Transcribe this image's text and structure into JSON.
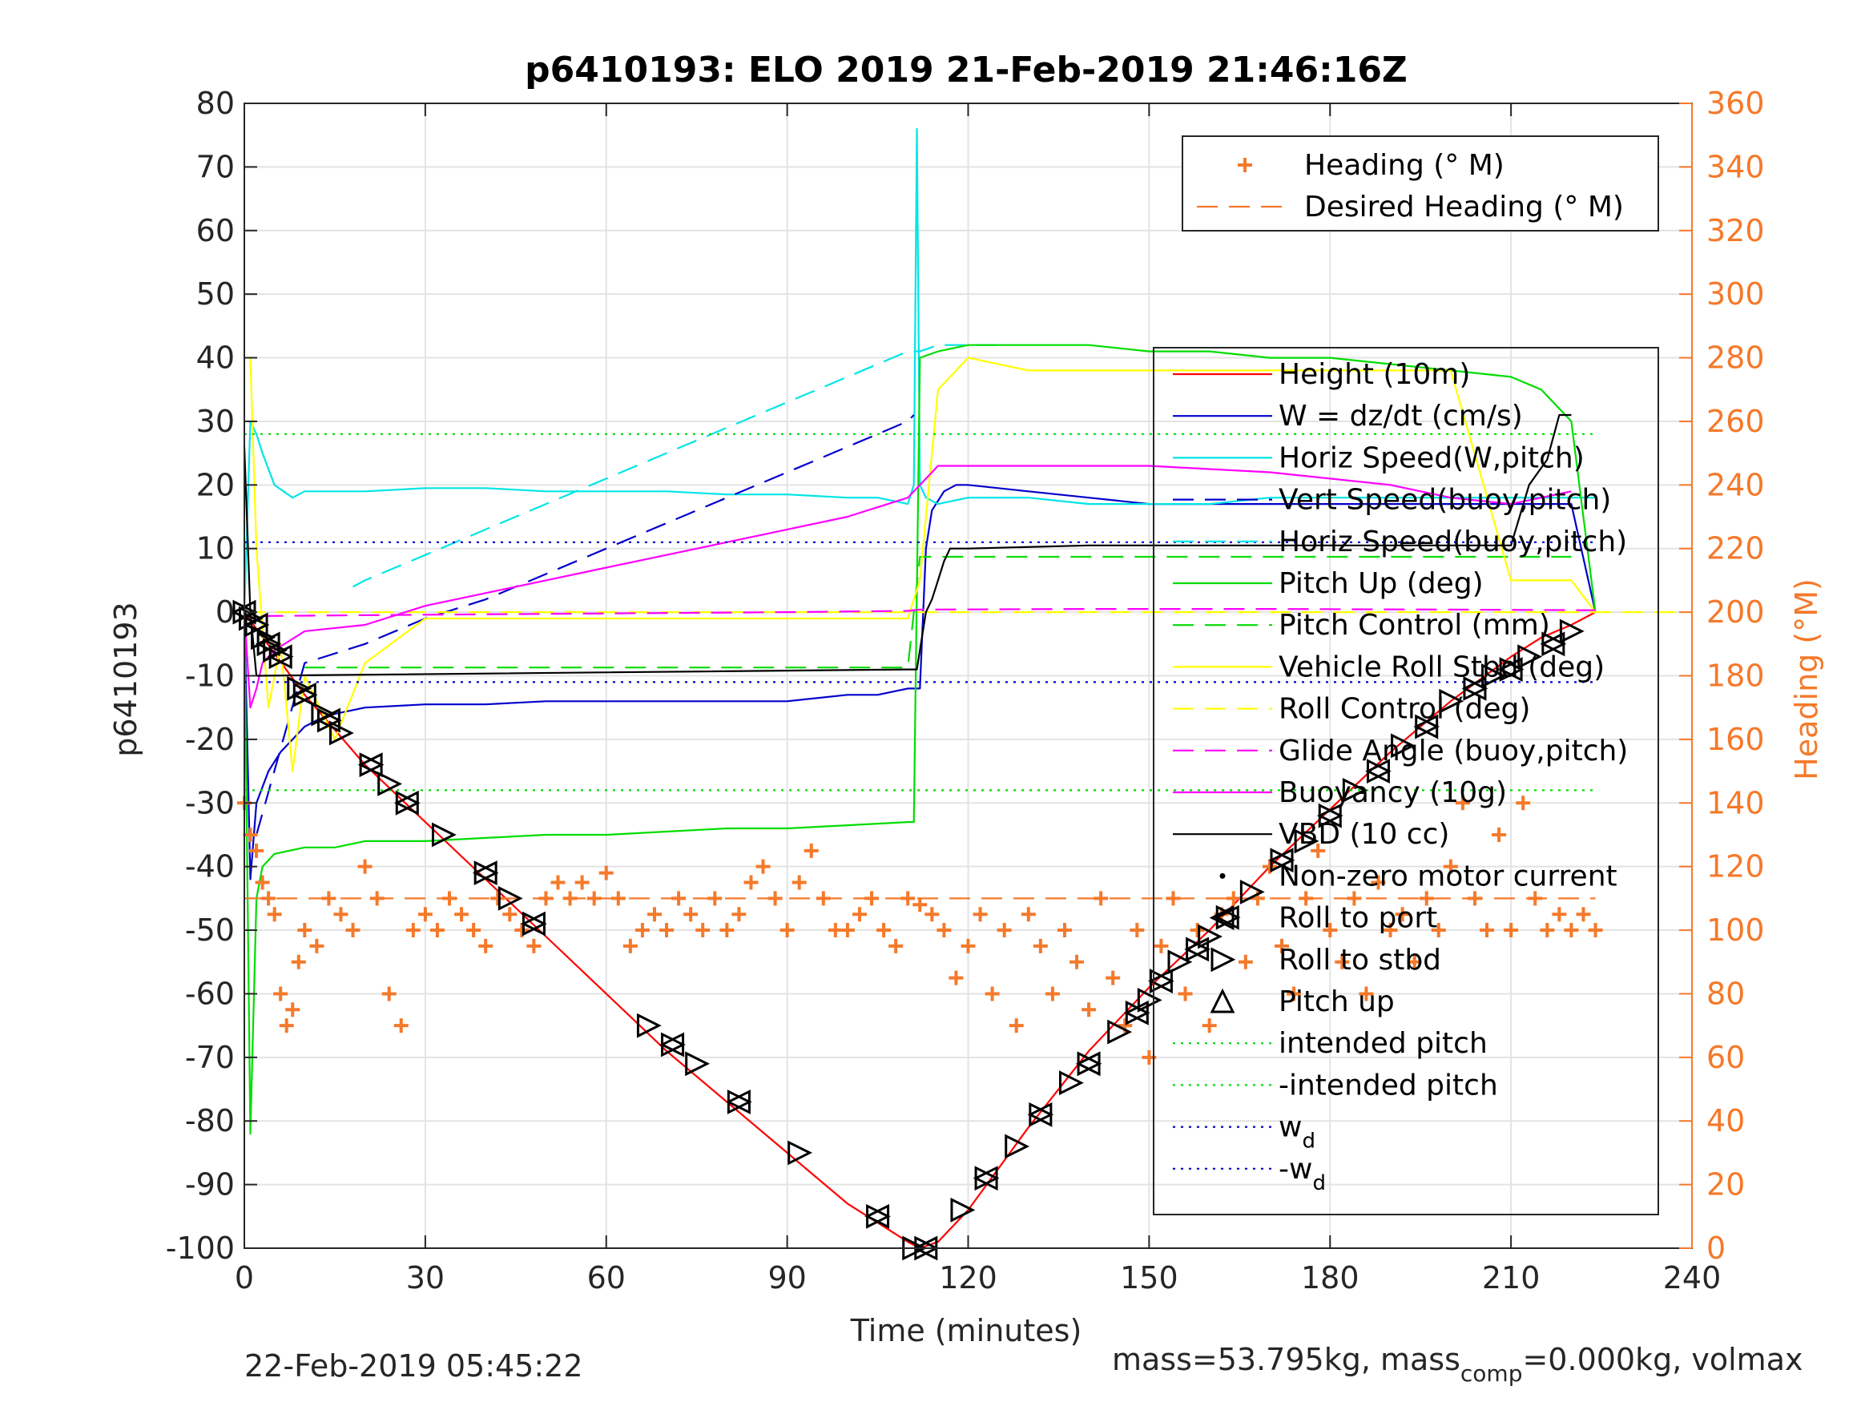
{
  "chart_data": {
    "type": "line",
    "title": "p6410193: ELO 2019 21-Feb-2019 21:46:16Z",
    "xlabel": "Time (minutes)",
    "ylabel": "p6410193",
    "ylabel_right": "Heading (°M)",
    "xlim": [
      0,
      240
    ],
    "ylim": [
      -100,
      80
    ],
    "ylim_right": [
      0,
      360
    ],
    "grid": true,
    "xticks": [
      0,
      30,
      60,
      90,
      120,
      150,
      180,
      210,
      240
    ],
    "yticks": [
      -100,
      -90,
      -80,
      -70,
      -60,
      -50,
      -40,
      -30,
      -20,
      -10,
      0,
      10,
      20,
      30,
      40,
      50,
      60,
      70,
      80
    ],
    "yticks_right": [
      0,
      20,
      40,
      60,
      80,
      100,
      120,
      140,
      160,
      180,
      200,
      220,
      240,
      260,
      280,
      300,
      320,
      340,
      360
    ],
    "footer_left": "22-Feb-2019 05:45:22",
    "footer_right_main": "mass=53.795kg, mass",
    "footer_right_sub": "comp",
    "footer_right_tail": "=0.000kg, volmax",
    "legend_heading": [
      {
        "name": "Heading (° M)",
        "color": "#f5792a",
        "style": "plus"
      },
      {
        "name": "Desired Heading (° M)",
        "color": "#f5792a",
        "style": "dash"
      }
    ],
    "legend_heading_placement": "top-right",
    "legend_main": [
      {
        "name": "Height (10m)",
        "color": "#ff0000",
        "style": "solid"
      },
      {
        "name": "W = dz/dt (cm/s)",
        "color": "#0000cc",
        "style": "solid"
      },
      {
        "name": "Horiz Speed(W,pitch)",
        "color": "#00e5e5",
        "style": "solid"
      },
      {
        "name": "Vert Speed(buoy,pitch)",
        "color": "#0000cc",
        "style": "dash"
      },
      {
        "name": "Horiz Speed(buoy,pitch)",
        "color": "#00e5e5",
        "style": "dash"
      },
      {
        "name": "Pitch Up (deg)",
        "color": "#00dd00",
        "style": "solid"
      },
      {
        "name": "Pitch Control (mm)",
        "color": "#00dd00",
        "style": "dash"
      },
      {
        "name": "Vehicle Roll Stbd (deg)",
        "color": "#ffff00",
        "style": "solid"
      },
      {
        "name": "Roll Control (deg)",
        "color": "#ffff00",
        "style": "dash"
      },
      {
        "name": "Glide Angle (buoy,pitch)",
        "color": "#ff00ff",
        "style": "dash"
      },
      {
        "name": "Buoyancy (10g)",
        "color": "#ff00ff",
        "style": "solid"
      },
      {
        "name": "VBD (10 cc)",
        "color": "#000000",
        "style": "solid"
      },
      {
        "name": "Non-zero motor current",
        "color": "#000000",
        "style": "dot"
      },
      {
        "name": "Roll to port",
        "color": "#000000",
        "style": "tri-left"
      },
      {
        "name": "Roll to stbd",
        "color": "#000000",
        "style": "tri-right"
      },
      {
        "name": "Pitch up",
        "color": "#000000",
        "style": "tri-up"
      },
      {
        "name": "intended pitch",
        "color": "#00dd00",
        "style": "dotted"
      },
      {
        "name": "-intended pitch",
        "color": "#00dd00",
        "style": "dotted"
      },
      {
        "name": "w",
        "sub": "d",
        "color": "#0000cc",
        "style": "dotted"
      },
      {
        "name": "-w",
        "sub": "d",
        "color": "#0000cc",
        "style": "dotted"
      }
    ],
    "legend_main_placement": "right",
    "series": [
      {
        "name": "Height (10m)",
        "color": "#ff0000",
        "style": "solid",
        "x": [
          0,
          10,
          20,
          30,
          40,
          50,
          60,
          70,
          80,
          90,
          100,
          105,
          110,
          112,
          115,
          120,
          130,
          140,
          150,
          160,
          170,
          180,
          190,
          200,
          210,
          215,
          220,
          224
        ],
        "y": [
          0,
          -13,
          -24,
          -33,
          -42,
          -51,
          -60,
          -69,
          -77,
          -85,
          -93,
          -96,
          -99,
          -100,
          -99,
          -94,
          -81,
          -69,
          -59,
          -50,
          -40,
          -31,
          -22,
          -14,
          -7,
          -4,
          -2,
          0
        ]
      },
      {
        "name": "W = dz/dt (cm/s)",
        "color": "#0000cc",
        "style": "solid",
        "x": [
          0,
          1,
          2,
          4,
          6,
          8,
          10,
          12,
          15,
          20,
          30,
          40,
          50,
          60,
          70,
          80,
          90,
          100,
          105,
          110,
          112,
          113,
          114,
          116,
          118,
          120,
          130,
          140,
          150,
          160,
          170,
          180,
          190,
          200,
          210,
          215,
          220,
          224
        ],
        "y": [
          0,
          -42,
          -30,
          -25,
          -22,
          -20,
          -18,
          -17,
          -16,
          -15,
          -14.5,
          -14.5,
          -14,
          -14,
          -14,
          -14,
          -14,
          -13,
          -13,
          -12,
          -12,
          10,
          16,
          19,
          20,
          20,
          19,
          18,
          17,
          17,
          17,
          17,
          17,
          17,
          17,
          17,
          17,
          0
        ]
      },
      {
        "name": "Horiz Speed(W,pitch)",
        "color": "#00e5e5",
        "style": "solid",
        "x": [
          0,
          1,
          2,
          3,
          5,
          8,
          10,
          15,
          20,
          30,
          40,
          50,
          60,
          70,
          80,
          90,
          100,
          105,
          110,
          111,
          111.5,
          112,
          113,
          115,
          120,
          130,
          140,
          150,
          160,
          170,
          180,
          190,
          200,
          210,
          215,
          220,
          224
        ],
        "y": [
          0,
          30,
          28,
          25,
          20,
          18,
          19,
          19,
          19,
          19.5,
          19.5,
          19,
          19,
          19,
          18.5,
          18.5,
          18,
          18,
          17,
          20,
          76,
          20,
          18,
          17,
          18,
          18,
          17,
          17,
          17,
          18,
          18,
          18,
          18,
          18,
          18,
          18,
          18
        ]
      },
      {
        "name": "Vert Speed(buoy,pitch)",
        "color": "#0000cc",
        "style": "dash",
        "x": [
          2,
          10,
          20,
          30,
          40,
          50,
          60,
          70,
          80,
          90,
          100,
          110,
          111
        ],
        "y": [
          -35,
          -8,
          -5,
          -1,
          2,
          6,
          10,
          14,
          18,
          22,
          26,
          30,
          31
        ]
      },
      {
        "name": "Horiz Speed(buoy,pitch)",
        "color": "#00e5e5",
        "style": "dash",
        "x": [
          18,
          20,
          30,
          40,
          50,
          60,
          70,
          80,
          90,
          100,
          110,
          112,
          115,
          120,
          125
        ],
        "y": [
          4,
          5,
          9,
          13,
          17,
          21,
          25,
          29,
          33,
          37,
          41,
          41,
          42,
          42,
          42
        ]
      },
      {
        "name": "Pitch Up (deg)",
        "color": "#00dd00",
        "style": "solid",
        "x": [
          0,
          1,
          2,
          3,
          5,
          10,
          15,
          20,
          30,
          40,
          50,
          60,
          70,
          80,
          90,
          100,
          110,
          111,
          112,
          115,
          120,
          130,
          140,
          150,
          160,
          170,
          180,
          190,
          200,
          210,
          215,
          220,
          224
        ],
        "y": [
          0,
          -82,
          -45,
          -40,
          -38,
          -37,
          -37,
          -36,
          -36,
          -35.5,
          -35,
          -35,
          -34.5,
          -34,
          -34,
          -33.5,
          -33,
          -33,
          40,
          41,
          42,
          42,
          42,
          41,
          41,
          40,
          40,
          39,
          38,
          37,
          35,
          30,
          0
        ]
      },
      {
        "name": "Pitch Control (mm)",
        "color": "#00dd00",
        "style": "dash",
        "x": [
          10,
          30,
          50,
          70,
          90,
          110,
          112,
          130,
          150,
          170,
          190,
          210,
          220
        ],
        "y": [
          -8.7,
          -8.7,
          -8.7,
          -8.7,
          -8.7,
          -8.7,
          8.7,
          8.7,
          8.7,
          8.7,
          8.7,
          8.7,
          8.7
        ]
      },
      {
        "name": "Vehicle Roll Stbd (deg)",
        "color": "#ffff00",
        "style": "solid",
        "x": [
          1,
          2,
          4,
          6,
          8,
          10,
          15,
          20,
          30,
          40,
          50,
          60,
          70,
          80,
          90,
          100,
          110,
          112,
          115,
          120,
          130,
          140,
          150,
          160,
          170,
          180,
          190,
          200,
          210,
          220,
          224
        ],
        "y": [
          40,
          10,
          -15,
          -5,
          -25,
          -10,
          -20,
          -8,
          -1,
          -1,
          -1,
          -1,
          -1,
          -1,
          -1,
          -1,
          -1,
          5,
          35,
          40,
          38,
          38,
          38,
          38,
          38,
          38,
          38,
          38,
          5,
          5,
          0
        ]
      },
      {
        "name": "Roll Control (deg)",
        "color": "#ffff00",
        "style": "dash",
        "x": [
          0,
          240
        ],
        "y": [
          0,
          0
        ]
      },
      {
        "name": "Glide Angle (buoy,pitch)",
        "color": "#ff00ff",
        "style": "dash",
        "x": [
          3,
          30,
          60,
          90,
          110,
          112,
          140,
          170,
          200,
          224
        ],
        "y": [
          -0.6,
          -0.4,
          -0.2,
          0,
          0.2,
          0.4,
          0.5,
          0.5,
          0.4,
          0.3
        ]
      },
      {
        "name": "Buoyancy (10g)",
        "color": "#ff00ff",
        "style": "solid",
        "x": [
          0,
          1,
          2,
          3,
          5,
          10,
          20,
          30,
          40,
          50,
          60,
          70,
          80,
          90,
          100,
          110,
          115,
          120,
          130,
          140,
          150,
          160,
          170,
          180,
          190,
          200,
          210,
          215,
          220
        ],
        "y": [
          0,
          -15,
          -12,
          -8,
          -6,
          -3,
          -2,
          1,
          3,
          5,
          7,
          9,
          11,
          13,
          15,
          18,
          23,
          23,
          23,
          23,
          23,
          22.5,
          22,
          21,
          20,
          18,
          17,
          18,
          19
        ]
      },
      {
        "name": "VBD (10 cc)",
        "color": "#000000",
        "style": "solid",
        "x": [
          0,
          1,
          2,
          110,
          111.5,
          113,
          114,
          115,
          116,
          117,
          120,
          140,
          160,
          180,
          200,
          210,
          213,
          216,
          218,
          220
        ],
        "y": [
          26,
          0,
          -10,
          -9,
          -9,
          0,
          2,
          5,
          8,
          10,
          10,
          10.5,
          10.5,
          10.5,
          10.5,
          10.5,
          20,
          24,
          31,
          31
        ]
      },
      {
        "name": "intended pitch",
        "color": "#00dd00",
        "style": "dotted",
        "x": [
          0,
          224
        ],
        "y": [
          28,
          28
        ]
      },
      {
        "name": "-intended pitch",
        "color": "#00dd00",
        "style": "dotted",
        "x": [
          0,
          224
        ],
        "y": [
          -28,
          -28
        ]
      },
      {
        "name": "w_d",
        "color": "#0000cc",
        "style": "dotted",
        "x": [
          0,
          224
        ],
        "y": [
          11,
          11
        ]
      },
      {
        "name": "-w_d",
        "color": "#0000cc",
        "style": "dotted",
        "x": [
          0,
          224
        ],
        "y": [
          -11,
          -11
        ]
      },
      {
        "name": "Desired Heading (° M)",
        "color": "#f5792a",
        "style": "dash",
        "axis": "right",
        "x": [
          0,
          224
        ],
        "y": [
          110,
          110
        ]
      },
      {
        "name": "Heading (° M)",
        "color": "#f5792a",
        "style": "plus",
        "axis": "right",
        "x": [
          0,
          1,
          2,
          3,
          4,
          5,
          6,
          7,
          8,
          9,
          10,
          12,
          14,
          16,
          18,
          20,
          22,
          24,
          26,
          28,
          30,
          32,
          34,
          36,
          38,
          40,
          42,
          44,
          46,
          48,
          50,
          52,
          54,
          56,
          58,
          60,
          62,
          64,
          66,
          68,
          70,
          72,
          74,
          76,
          78,
          80,
          82,
          84,
          86,
          88,
          90,
          92,
          94,
          96,
          98,
          100,
          102,
          104,
          106,
          108,
          110,
          112,
          114,
          116,
          118,
          120,
          122,
          124,
          126,
          128,
          130,
          132,
          134,
          136,
          138,
          140,
          142,
          144,
          146,
          148,
          150,
          152,
          154,
          156,
          158,
          160,
          162,
          164,
          166,
          168,
          170,
          172,
          174,
          176,
          178,
          180,
          182,
          184,
          186,
          188,
          190,
          192,
          194,
          196,
          198,
          200,
          202,
          204,
          206,
          208,
          210,
          212,
          214,
          216,
          218,
          220,
          222,
          224
        ],
        "y": [
          140,
          130,
          125,
          115,
          110,
          105,
          80,
          70,
          75,
          90,
          100,
          95,
          110,
          105,
          100,
          120,
          110,
          80,
          70,
          100,
          105,
          100,
          110,
          105,
          100,
          95,
          110,
          105,
          100,
          95,
          110,
          115,
          110,
          115,
          110,
          118,
          110,
          95,
          100,
          105,
          100,
          110,
          105,
          100,
          110,
          100,
          105,
          115,
          120,
          110,
          100,
          115,
          125,
          110,
          100,
          100,
          105,
          110,
          100,
          95,
          110,
          108,
          105,
          100,
          85,
          95,
          105,
          80,
          100,
          70,
          105,
          95,
          80,
          100,
          90,
          75,
          110,
          85,
          70,
          100,
          60,
          95,
          110,
          80,
          100,
          70,
          105,
          110,
          90,
          110,
          120,
          95,
          80,
          110,
          125,
          100,
          90,
          110,
          80,
          115,
          100,
          105,
          90,
          110,
          100,
          120,
          140,
          110,
          100,
          130,
          100,
          140,
          110,
          100,
          105,
          100,
          105,
          100
        ]
      }
    ],
    "markers": {
      "name": "Pitch / Roll events",
      "x": [
        0,
        1,
        2,
        3,
        4,
        5,
        6,
        9,
        10,
        13,
        14,
        16,
        21,
        24,
        27,
        33,
        40,
        44,
        48,
        67,
        71,
        75,
        82,
        92,
        105,
        111,
        113,
        119,
        123,
        128,
        132,
        137,
        140,
        145,
        148,
        150,
        152,
        155,
        158,
        160,
        163,
        167,
        172,
        176,
        180,
        184,
        188,
        192,
        196,
        200,
        204,
        207,
        210,
        213,
        217,
        220
      ],
      "y": [
        0,
        -1,
        -2,
        -4,
        -5,
        -6,
        -7,
        -12,
        -13,
        -16,
        -17,
        -19,
        -24,
        -27,
        -30,
        -35,
        -41,
        -45,
        -49,
        -65,
        -68,
        -71,
        -77,
        -85,
        -95,
        -100,
        -100,
        -94,
        -89,
        -84,
        -79,
        -74,
        -71,
        -66,
        -63,
        -61,
        -58,
        -55,
        -53,
        -51,
        -48,
        -44,
        -39,
        -36,
        -32,
        -28,
        -25,
        -21,
        -18,
        -14,
        -12,
        -10,
        -9,
        -7,
        -5,
        -3
      ]
    }
  }
}
